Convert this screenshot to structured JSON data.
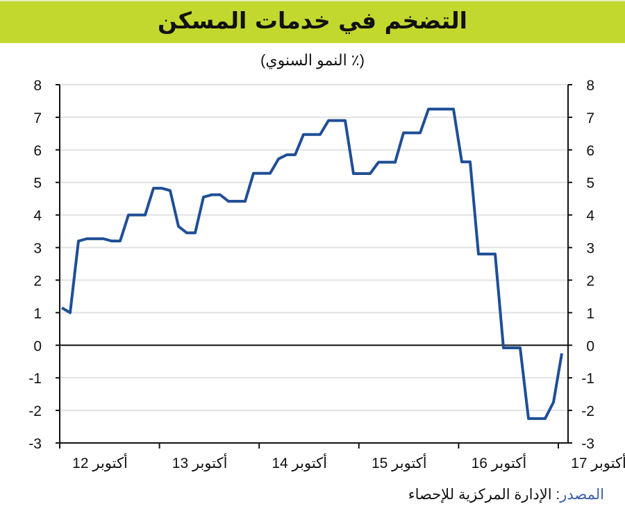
{
  "title": "التضخم في خدمات المسكن",
  "source": {
    "label": "المصدر",
    "text": ": الإدارة المركزية للإحصاء"
  },
  "colors": {
    "banner": "#c2d82e",
    "line": "#1f4e96",
    "source_label": "#3b5ea8"
  },
  "chart_data": {
    "type": "line",
    "title": "التضخم في خدمات المسكن",
    "subtitle": "(٪ النمو السنوي)",
    "ylim": [
      -3,
      8
    ],
    "yticks": [
      "8",
      "7",
      "6",
      "5",
      "4",
      "3",
      "2",
      "1",
      "0",
      "-1",
      "-2",
      "-3"
    ],
    "xtick_labels": [
      "أكتوبر 12",
      "أكتوبر 13",
      "أكتوبر 14",
      "أكتوبر 15",
      "أكتوبر 16",
      "أكتوبر 17"
    ],
    "grid": true,
    "dual_y_axis": true,
    "x": [
      "2012-10",
      "2012-11",
      "2012-12",
      "2013-01",
      "2013-02",
      "2013-03",
      "2013-04",
      "2013-05",
      "2013-06",
      "2013-07",
      "2013-08",
      "2013-09",
      "2013-10",
      "2013-11",
      "2013-12",
      "2014-01",
      "2014-02",
      "2014-03",
      "2014-04",
      "2014-05",
      "2014-06",
      "2014-07",
      "2014-08",
      "2014-09",
      "2014-10",
      "2014-11",
      "2014-12",
      "2015-01",
      "2015-02",
      "2015-03",
      "2015-04",
      "2015-05",
      "2015-06",
      "2015-07",
      "2015-08",
      "2015-09",
      "2015-10",
      "2015-11",
      "2015-12",
      "2016-01",
      "2016-02",
      "2016-03",
      "2016-04",
      "2016-05",
      "2016-06",
      "2016-07",
      "2016-08",
      "2016-09",
      "2016-10",
      "2016-11",
      "2016-12",
      "2017-01",
      "2017-02",
      "2017-03",
      "2017-04",
      "2017-05",
      "2017-06",
      "2017-07",
      "2017-08",
      "2017-09",
      "2017-10"
    ],
    "series": [
      {
        "values": [
          1.15,
          1.0,
          3.2,
          3.27,
          3.27,
          3.27,
          3.2,
          3.2,
          4.0,
          4.0,
          4.0,
          4.82,
          4.82,
          4.75,
          3.65,
          3.45,
          3.45,
          4.55,
          4.62,
          4.62,
          4.42,
          4.42,
          4.42,
          5.28,
          5.28,
          5.28,
          5.72,
          5.85,
          5.85,
          6.47,
          6.47,
          6.47,
          6.9,
          6.9,
          6.9,
          5.27,
          5.27,
          5.27,
          5.62,
          5.62,
          5.62,
          6.52,
          6.52,
          6.52,
          7.25,
          7.25,
          7.25,
          7.25,
          5.63,
          5.63,
          2.8,
          2.8,
          2.8,
          -0.08,
          -0.08,
          -0.08,
          -2.25,
          -2.25,
          -2.25,
          -1.75,
          -0.25
        ]
      }
    ]
  }
}
